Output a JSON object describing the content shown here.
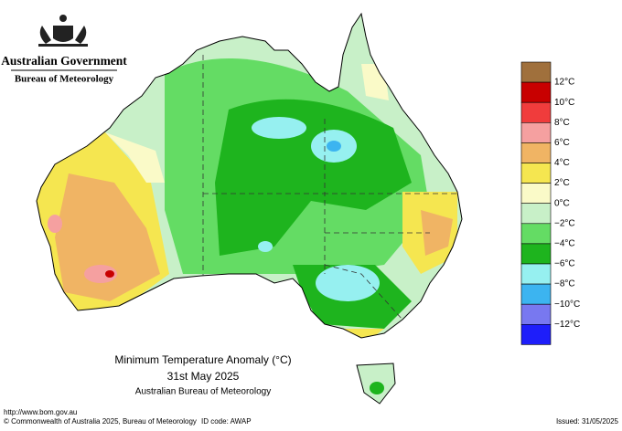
{
  "header": {
    "government": "Australian Government",
    "agency": "Bureau of Meteorology"
  },
  "legend": {
    "labels": [
      "12°C",
      "10°C",
      "8°C",
      "6°C",
      "4°C",
      "2°C",
      "0°C",
      "−2°C",
      "−4°C",
      "−6°C",
      "−8°C",
      "−10°C",
      "−12°C"
    ],
    "colors": [
      "#a0703c",
      "#c80000",
      "#f03c3c",
      "#f5a0a0",
      "#f0b464",
      "#f5e650",
      "#fafac8",
      "#c8f0c8",
      "#64dc64",
      "#1eb41e",
      "#96f0f0",
      "#3cb4f0",
      "#7878f0",
      "#1e1efa"
    ]
  },
  "title": {
    "line1": "Minimum Temperature Anomaly (°C)",
    "line2": "31st May 2025",
    "line3": "Australian Bureau of Meteorology"
  },
  "footer": {
    "url": "http://www.bom.gov.au",
    "copyright": "© Commonwealth of Australia 2025, Bureau of Meteorology",
    "id_code": "ID code: AWAP",
    "issued": "Issued: 31/05/2025"
  }
}
